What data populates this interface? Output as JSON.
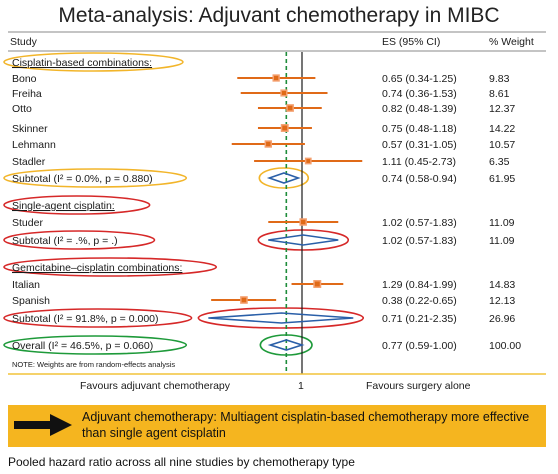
{
  "title": "Meta-analysis: Adjuvant chemotherapy in MIBC",
  "headers": {
    "study": "Study",
    "es": "ES (95% CI)",
    "weight": "% Weight"
  },
  "footer": {
    "left_label": "Favours adjuvant chemotherapy",
    "tick_label": "1",
    "right_label": "Favours surgery alone"
  },
  "note": "NOTE: Weights are from random-effects analysis",
  "conclusion": "Adjuvant chemotherapy: Multiagent cisplatin-based chemotherapy more effective than single agent cisplatin",
  "caption": "Pooled hazard ratio across all nine studies by chemotherapy type",
  "colors": {
    "estimate_line": "#e06a18",
    "box": "#e06a18",
    "diamond": "#2a5fa8",
    "null_line": "#1a1a1a",
    "overall_line": "#1e8c3a",
    "axis_line": "#f2c33a",
    "yellow_oval": "#f2b52a",
    "red_oval": "#d62828",
    "green_oval": "#1e9a3a",
    "bottom_box": "#f5b51f"
  },
  "chart_data": {
    "type": "forest",
    "measure": "Hazard ratio",
    "null_value": 1,
    "overall_estimate": 0.77,
    "rows": [
      {
        "kind": "header",
        "label": "Cisplatin-based combinations:",
        "oval": "yellow"
      },
      {
        "kind": "study",
        "label": "Bono",
        "es": 0.65,
        "lo": 0.34,
        "hi": 1.25,
        "es_text": "0.65 (0.34-1.25)",
        "weight": "9.83"
      },
      {
        "kind": "study",
        "label": "Freiha",
        "es": 0.74,
        "lo": 0.36,
        "hi": 1.53,
        "es_text": "0.74 (0.36-1.53)",
        "weight": "8.61"
      },
      {
        "kind": "study",
        "label": "Otto",
        "es": 0.82,
        "lo": 0.48,
        "hi": 1.39,
        "es_text": "0.82 (0.48-1.39)",
        "weight": "12.37"
      },
      {
        "kind": "study",
        "label": "Skinner",
        "es": 0.75,
        "lo": 0.48,
        "hi": 1.18,
        "es_text": "0.75 (0.48-1.18)",
        "weight": "14.22"
      },
      {
        "kind": "study",
        "label": "Lehmann",
        "es": 0.57,
        "lo": 0.31,
        "hi": 1.05,
        "es_text": "0.57 (0.31-1.05)",
        "weight": "10.57"
      },
      {
        "kind": "study",
        "label": "Stadler",
        "es": 1.11,
        "lo": 0.45,
        "hi": 2.73,
        "es_text": "1.11 (0.45-2.73)",
        "weight": "6.35"
      },
      {
        "kind": "subtotal",
        "label": "Subtotal (I² = 0.0%, p = 0.880)",
        "es": 0.74,
        "lo": 0.58,
        "hi": 0.94,
        "es_text": "0.74 (0.58-0.94)",
        "weight": "61.95",
        "oval": "yellow"
      },
      {
        "kind": "header",
        "label": "Single-agent cisplatin:",
        "oval": "red"
      },
      {
        "kind": "study",
        "label": "Studer",
        "es": 1.02,
        "lo": 0.57,
        "hi": 1.83,
        "es_text": "1.02 (0.57-1.83)",
        "weight": "11.09"
      },
      {
        "kind": "subtotal",
        "label": "Subtotal (I² = .%, p = .)",
        "es": 1.02,
        "lo": 0.57,
        "hi": 1.83,
        "es_text": "1.02 (0.57-1.83)",
        "weight": "11.09",
        "oval": "red"
      },
      {
        "kind": "header",
        "label": "Gemcitabine–cisplatin combinations:",
        "oval": "red"
      },
      {
        "kind": "study",
        "label": "Italian",
        "es": 1.29,
        "lo": 0.84,
        "hi": 1.99,
        "es_text": "1.29 (0.84-1.99)",
        "weight": "14.83"
      },
      {
        "kind": "study",
        "label": "Spanish",
        "es": 0.38,
        "lo": 0.22,
        "hi": 0.65,
        "es_text": "0.38 (0.22-0.65)",
        "weight": "12.13"
      },
      {
        "kind": "subtotal",
        "label": "Subtotal (I² = 91.8%, p = 0.000)",
        "es": 0.71,
        "lo": 0.21,
        "hi": 2.35,
        "es_text": "0.71 (0.21-2.35)",
        "weight": "26.96",
        "oval": "red"
      },
      {
        "kind": "overall",
        "label": "Overall (I² = 46.5%, p = 0.060)",
        "es": 0.77,
        "lo": 0.59,
        "hi": 1.0,
        "es_text": "0.77 (0.59-1.00)",
        "weight": "100.00",
        "oval": "green"
      }
    ]
  }
}
